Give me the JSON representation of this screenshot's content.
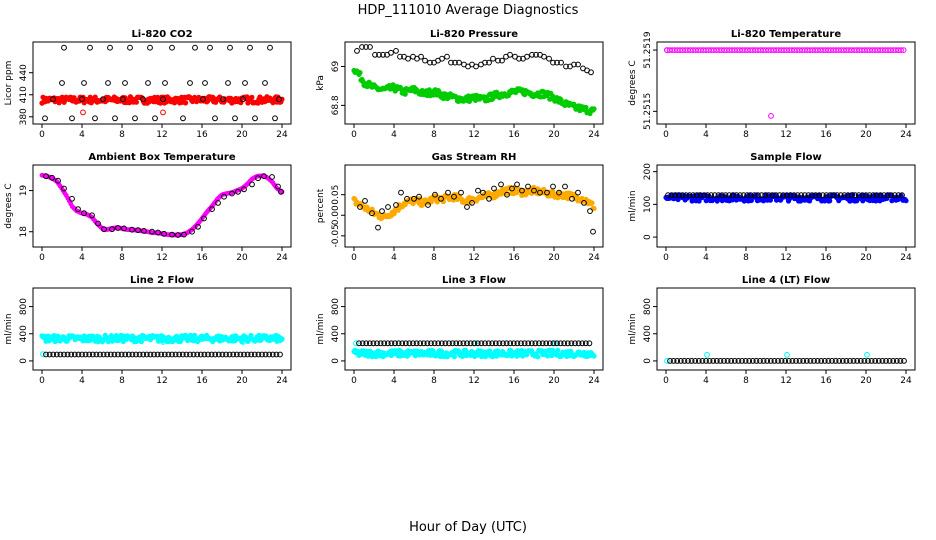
{
  "figure": {
    "title": "HDP_111010  Average Diagnostics",
    "xlabel": "Hour of Day (UTC)"
  },
  "chart_data": [
    {
      "type": "scatter",
      "title": "Li-820 CO2",
      "ylabel": "Licor ppm",
      "xlim": [
        0,
        24
      ],
      "ylim": [
        377,
        475
      ],
      "xticks": [
        0,
        4,
        8,
        12,
        16,
        20,
        24
      ],
      "yticks": [
        380,
        410,
        440
      ],
      "series": [
        {
          "color": "#ff0000",
          "marker": "dense-band",
          "x": [
            0,
            24
          ],
          "y": [
            403,
            403
          ]
        },
        {
          "color": "#ff0000",
          "marker": "circle",
          "x": [
            4.1,
            12.1
          ],
          "y": [
            386,
            386
          ]
        },
        {
          "color": "#000000",
          "marker": "circle",
          "x": [
            0.3,
            1.1,
            2.0,
            2.2,
            3.0,
            4.0,
            4.2,
            4.8,
            5.3,
            6.1,
            6.6,
            6.8,
            7.3,
            8.1,
            8.3,
            8.8,
            9.3,
            10.1,
            10.6,
            10.8,
            11.3,
            12.1,
            12.3,
            13.0,
            14.1,
            14.8,
            15.3,
            16.1,
            16.3,
            16.8,
            17.3,
            18.1,
            18.6,
            18.8,
            19.3,
            20.1,
            20.3,
            20.8,
            21.3,
            22.3,
            22.8,
            23.3,
            23.7
          ],
          "y": [
            378,
            404,
            426,
            474,
            378,
            404,
            426,
            474,
            378,
            404,
            426,
            474,
            378,
            404,
            426,
            474,
            378,
            404,
            426,
            474,
            378,
            404,
            426,
            474,
            378,
            426,
            474,
            404,
            426,
            474,
            378,
            404,
            426,
            474,
            378,
            404,
            426,
            474,
            378,
            426,
            474,
            378,
            404
          ]
        }
      ]
    },
    {
      "type": "scatter",
      "title": "Li-820 Pressure",
      "ylabel": "kPa",
      "xlim": [
        0,
        24
      ],
      "ylim": [
        68.73,
        69.1
      ],
      "xticks": [
        0,
        4,
        8,
        12,
        16,
        20,
        24
      ],
      "yticks": [
        68.8,
        69.0
      ],
      "series": [
        {
          "color": "#00cc00",
          "marker": "dense-band",
          "x": [
            0,
            0.5,
            1,
            2,
            3,
            4,
            5,
            6,
            7,
            8,
            9,
            10,
            11,
            12,
            13,
            14,
            15,
            16,
            17,
            18,
            19,
            20,
            21,
            22,
            23,
            24
          ],
          "y": [
            68.99,
            68.96,
            68.92,
            68.89,
            68.88,
            68.89,
            68.87,
            68.88,
            68.86,
            68.87,
            68.85,
            68.84,
            68.83,
            68.84,
            68.83,
            68.85,
            68.86,
            68.87,
            68.87,
            68.86,
            68.86,
            68.84,
            68.81,
            68.79,
            68.78,
            68.77
          ]
        },
        {
          "color": "#000000",
          "marker": "circle",
          "x": [
            0.3,
            0.8,
            1.2,
            1.6,
            2.1,
            2.5,
            2.9,
            3.3,
            3.7,
            4.2,
            4.6,
            5.0,
            5.4,
            5.9,
            6.3,
            6.7,
            7.1,
            7.6,
            8.0,
            8.4,
            8.8,
            9.3,
            9.7,
            10.1,
            10.5,
            11.0,
            11.4,
            11.8,
            12.2,
            12.7,
            13.1,
            13.5,
            13.9,
            14.4,
            14.8,
            15.2,
            15.6,
            16.1,
            16.5,
            16.9,
            17.3,
            17.8,
            18.2,
            18.6,
            19.0,
            19.5,
            19.9,
            20.3,
            20.7,
            21.2,
            21.6,
            22.0,
            22.4,
            22.9,
            23.3,
            23.7
          ],
          "y": [
            69.08,
            69.1,
            69.1,
            69.1,
            69.06,
            69.06,
            69.06,
            69.06,
            69.07,
            69.08,
            69.05,
            69.05,
            69.04,
            69.05,
            69.04,
            69.05,
            69.03,
            69.02,
            69.02,
            69.03,
            69.04,
            69.05,
            69.02,
            69.02,
            69.02,
            69.01,
            69.0,
            69.01,
            69.0,
            69.01,
            69.02,
            69.02,
            69.04,
            69.03,
            69.03,
            69.05,
            69.06,
            69.05,
            69.04,
            69.04,
            69.05,
            69.06,
            69.06,
            69.06,
            69.05,
            69.04,
            69.02,
            69.02,
            69.02,
            69.0,
            69.0,
            69.01,
            69.01,
            68.99,
            68.98,
            68.97
          ]
        }
      ]
    },
    {
      "type": "scatter",
      "title": "Li-820 Temperature",
      "ylabel": "degrees C",
      "xlim": [
        0,
        24
      ],
      "ylim": [
        51.25145,
        51.25192
      ],
      "xticks": [
        0,
        4,
        8,
        12,
        16,
        20,
        24
      ],
      "yticks": [
        51.2515,
        51.2519
      ],
      "ytick_labels": [
        "51.2515",
        "51.2519"
      ],
      "series": [
        {
          "color": "#ff00ff",
          "marker": "circle",
          "x": [
            0.1,
            10.5
          ],
          "y": [
            51.2519,
            51.25147
          ]
        },
        {
          "color": "#ff00ff",
          "marker": "circle-row",
          "x": [
            0.1,
            23.8
          ],
          "y": [
            51.2519,
            51.2519
          ],
          "step": 0.26
        }
      ]
    },
    {
      "type": "scatter",
      "title": "Ambient Box Temperature",
      "ylabel": "degrees C",
      "xlim": [
        0,
        24
      ],
      "ylim": [
        17.75,
        19.5
      ],
      "xticks": [
        0,
        4,
        8,
        12,
        16,
        20,
        24
      ],
      "yticks": [
        18.0,
        19.0
      ],
      "series": [
        {
          "color": "#ff00ff",
          "marker": "curve",
          "x": [
            0,
            0.5,
            1,
            1.5,
            2,
            2.5,
            3,
            3.5,
            4,
            4.5,
            5,
            5.5,
            6,
            6.5,
            7,
            7.5,
            8,
            8.5,
            9,
            9.5,
            10,
            10.5,
            11,
            11.5,
            12,
            12.5,
            13,
            13.5,
            14,
            14.5,
            15,
            15.5,
            16,
            16.5,
            17,
            17.5,
            18,
            18.5,
            19,
            19.5,
            20,
            20.5,
            21,
            21.5,
            22,
            22.5,
            23,
            23.5,
            24
          ],
          "y": [
            19.37,
            19.35,
            19.3,
            19.22,
            19.05,
            18.85,
            18.62,
            18.5,
            18.45,
            18.42,
            18.35,
            18.2,
            18.08,
            18.05,
            18.08,
            18.1,
            18.08,
            18.05,
            18.05,
            18.03,
            18.02,
            18.0,
            17.98,
            17.97,
            17.95,
            17.93,
            17.92,
            17.92,
            17.93,
            17.97,
            18.05,
            18.17,
            18.32,
            18.48,
            18.62,
            18.78,
            18.9,
            18.93,
            18.95,
            19.0,
            19.05,
            19.15,
            19.28,
            19.35,
            19.36,
            19.32,
            19.22,
            19.05,
            18.97
          ]
        },
        {
          "color": "#000000",
          "marker": "circle",
          "x": [
            0.4,
            1.0,
            1.6,
            2.2,
            3.0,
            3.6,
            4.2,
            5.0,
            5.6,
            6.2,
            7.0,
            7.6,
            8.2,
            9.0,
            9.6,
            10.2,
            11.0,
            11.6,
            12.2,
            13.0,
            13.6,
            14.2,
            15.0,
            15.6,
            16.2,
            17.0,
            17.6,
            18.2,
            19.0,
            19.6,
            20.2,
            21.0,
            21.6,
            22.2,
            23.0,
            23.6,
            23.9
          ],
          "y": [
            19.35,
            19.31,
            19.24,
            19.05,
            18.8,
            18.55,
            18.45,
            18.4,
            18.2,
            18.06,
            18.06,
            18.09,
            18.08,
            18.05,
            18.04,
            18.02,
            18.0,
            17.98,
            17.95,
            17.93,
            17.92,
            17.93,
            18.0,
            18.12,
            18.32,
            18.55,
            18.7,
            18.85,
            18.93,
            18.97,
            19.03,
            19.15,
            19.3,
            19.35,
            19.33,
            19.1,
            18.97
          ]
        }
      ]
    },
    {
      "type": "scatter",
      "title": "Gas Stream RH",
      "ylabel": "percent",
      "xlim": [
        0,
        24
      ],
      "ylim": [
        -0.065,
        0.11
      ],
      "xticks": [
        0,
        4,
        8,
        12,
        16,
        20,
        24
      ],
      "yticks": [
        -0.05,
        0.0,
        0.05
      ],
      "ytick_labels": [
        "-0.05",
        "0.00",
        "0.05"
      ],
      "series": [
        {
          "color": "#ffaa00",
          "marker": "dense-band",
          "x": [
            0,
            1,
            2,
            3,
            4,
            5,
            6,
            7,
            8,
            9,
            10,
            11,
            12,
            13,
            14,
            15,
            16,
            17,
            18,
            19,
            20,
            21,
            22,
            23,
            24
          ],
          "y": [
            0.035,
            0.02,
            0.005,
            -0.005,
            0.01,
            0.03,
            0.035,
            0.03,
            0.04,
            0.04,
            0.045,
            0.035,
            0.04,
            0.045,
            0.05,
            0.06,
            0.06,
            0.055,
            0.06,
            0.055,
            0.05,
            0.05,
            0.045,
            0.04,
            0.02
          ]
        },
        {
          "color": "#000000",
          "marker": "circle",
          "x": [
            0.6,
            1.1,
            1.8,
            2.4,
            2.8,
            3.4,
            4.2,
            4.7,
            5.3,
            6.0,
            6.5,
            7.4,
            8.1,
            8.7,
            9.4,
            10.0,
            10.7,
            11.3,
            11.8,
            12.4,
            12.9,
            13.5,
            14.0,
            14.7,
            15.3,
            15.8,
            16.3,
            16.8,
            17.4,
            18.0,
            18.6,
            19.3,
            19.9,
            20.5,
            21.1,
            21.8,
            22.4,
            23.0,
            23.6,
            23.9
          ],
          "y": [
            0.02,
            0.035,
            0.005,
            -0.03,
            0.01,
            0.02,
            0.025,
            0.055,
            0.04,
            0.04,
            0.045,
            0.025,
            0.05,
            0.04,
            0.055,
            0.045,
            0.055,
            0.02,
            0.03,
            0.06,
            0.055,
            0.04,
            0.065,
            0.075,
            0.05,
            0.065,
            0.075,
            0.06,
            0.07,
            0.06,
            0.055,
            0.055,
            0.07,
            0.055,
            0.07,
            0.04,
            0.055,
            0.03,
            0.01,
            -0.04
          ]
        }
      ]
    },
    {
      "type": "scatter",
      "title": "Sample Flow",
      "ylabel": "ml/min",
      "xlim": [
        0,
        24
      ],
      "ylim": [
        -15,
        205
      ],
      "xticks": [
        0,
        4,
        8,
        12,
        16,
        20,
        24
      ],
      "yticks": [
        0,
        100,
        200
      ],
      "series": [
        {
          "color": "#0000ff",
          "marker": "dense-band",
          "x": [
            0,
            24
          ],
          "y": [
            120,
            120
          ]
        },
        {
          "color": "#000000",
          "marker": "circle-row",
          "x": [
            0.2,
            23.8
          ],
          "y": [
            128,
            128
          ],
          "step": 0.36
        }
      ]
    },
    {
      "type": "scatter",
      "title": "Line 2 Flow",
      "ylabel": "ml/min",
      "xlim": [
        0,
        24
      ],
      "ylim": [
        -60,
        1000
      ],
      "xticks": [
        0,
        4,
        8,
        12,
        16,
        20,
        24
      ],
      "yticks": [
        0,
        400,
        800
      ],
      "series": [
        {
          "color": "#00ffff",
          "marker": "dense-band",
          "x": [
            0,
            24
          ],
          "y": [
            330,
            330
          ]
        },
        {
          "color": "#00ffff",
          "marker": "circle",
          "x": [
            0.1,
            4.1,
            12.1,
            20.1,
            23.8
          ],
          "y": [
            100,
            300,
            280,
            280,
            300
          ]
        },
        {
          "color": "#000000",
          "marker": "circle-row",
          "x": [
            0.4,
            23.8
          ],
          "y": [
            95,
            95
          ],
          "step": 0.36
        }
      ]
    },
    {
      "type": "scatter",
      "title": "Line 3 Flow",
      "ylabel": "ml/min",
      "xlim": [
        0,
        24
      ],
      "ylim": [
        -60,
        1000
      ],
      "xticks": [
        0,
        4,
        8,
        12,
        16,
        20,
        24
      ],
      "yticks": [
        0,
        400,
        800
      ],
      "series": [
        {
          "color": "#00ffff",
          "marker": "dense-band",
          "x": [
            0,
            24
          ],
          "y": [
            110,
            110
          ]
        },
        {
          "color": "#00ffff",
          "marker": "circle",
          "x": [
            0.2,
            4.1,
            12.1,
            20.1
          ],
          "y": [
            260,
            260,
            260,
            260
          ]
        },
        {
          "color": "#000000",
          "marker": "circle-row",
          "x": [
            0.5,
            23.8
          ],
          "y": [
            260,
            260
          ],
          "step": 0.36
        }
      ]
    },
    {
      "type": "scatter",
      "title": "Line 4 (LT) Flow",
      "ylabel": "ml/min",
      "xlim": [
        0,
        24
      ],
      "ylim": [
        -60,
        1000
      ],
      "xticks": [
        0,
        4,
        8,
        12,
        16,
        20,
        24
      ],
      "yticks": [
        0,
        400,
        800
      ],
      "series": [
        {
          "color": "#00ffff",
          "marker": "circle",
          "x": [
            0.1,
            4.1,
            12.1,
            20.1
          ],
          "y": [
            0,
            90,
            90,
            90
          ]
        },
        {
          "color": "#000000",
          "marker": "circle-row",
          "x": [
            0.4,
            23.8
          ],
          "y": [
            0,
            0
          ],
          "step": 0.36
        }
      ]
    }
  ]
}
